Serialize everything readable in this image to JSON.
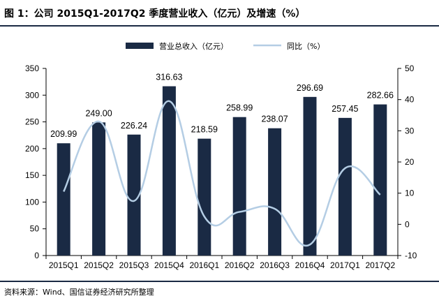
{
  "figure": {
    "title": "图 1：公司 2015Q1-2017Q2 季度营业收入（亿元）及增速（%）",
    "source": "资料来源：Wind、国信证券经济研究所整理"
  },
  "chart_data": {
    "type": "bar",
    "categories": [
      "2015Q1",
      "2015Q2",
      "2015Q3",
      "2015Q4",
      "2016Q1",
      "2016Q2",
      "2016Q3",
      "2016Q4",
      "2017Q1",
      "2017Q2"
    ],
    "series": [
      {
        "name": "营业总收入（亿元）",
        "type": "bar",
        "axis": "left",
        "values": [
          209.99,
          249.0,
          226.24,
          316.63,
          218.59,
          258.99,
          238.07,
          296.69,
          257.45,
          282.66
        ],
        "labels": [
          "209.99",
          "249.00",
          "226.24",
          "316.63",
          "218.59",
          "258.99",
          "238.07",
          "296.69",
          "257.45",
          "282.66"
        ],
        "color": "#1a2a44"
      },
      {
        "name": "同比（%）",
        "type": "line",
        "axis": "right",
        "values": [
          10.5,
          33.0,
          7.5,
          39.5,
          2.5,
          4.0,
          5.0,
          -6.5,
          18.0,
          9.5
        ],
        "color": "#b4cde4"
      }
    ],
    "y_left": {
      "min": 0,
      "max": 350,
      "ticks": [
        "0",
        "50",
        "100",
        "150",
        "200",
        "250",
        "300",
        "350"
      ]
    },
    "y_right": {
      "min": -10,
      "max": 50,
      "ticks": [
        "-10",
        "0",
        "10",
        "20",
        "30",
        "40",
        "50"
      ]
    },
    "legend_position": "top-center",
    "grid": false
  }
}
